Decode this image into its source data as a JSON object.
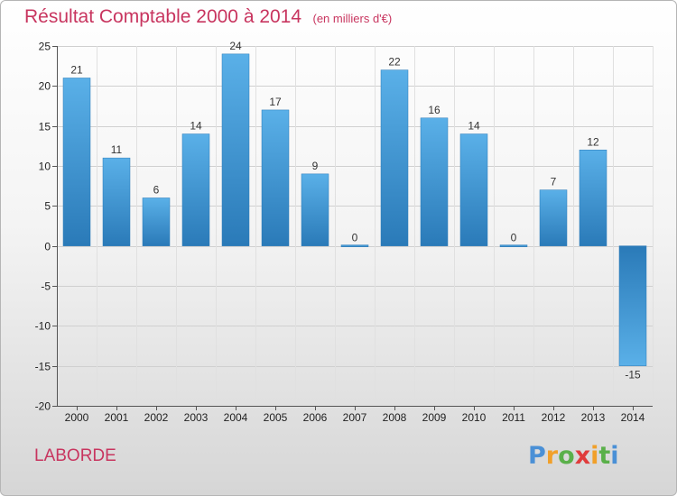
{
  "header": {
    "title": "Résultat Comptable 2000 à 2014",
    "unit": "(en milliers d'€)"
  },
  "footer": {
    "commune": "LABORDE",
    "brand": "Proxiti"
  },
  "colors": {
    "bar_light": "#5ab0e8",
    "bar_dark": "#2a7ab8",
    "accent": "#c8355f"
  },
  "chart_data": {
    "type": "bar",
    "title": "Résultat Comptable 2000 à 2014",
    "subtitle": "(en milliers d'€)",
    "xlabel": "",
    "ylabel": "",
    "categories": [
      "2000",
      "2001",
      "2002",
      "2003",
      "2004",
      "2005",
      "2006",
      "2007",
      "2008",
      "2009",
      "2010",
      "2011",
      "2012",
      "2013",
      "2014"
    ],
    "values": [
      21,
      11,
      6,
      14,
      24,
      17,
      9,
      0,
      22,
      16,
      14,
      0,
      7,
      12,
      -15
    ],
    "ylim": [
      -20,
      25
    ],
    "yticks": [
      -20,
      -15,
      -10,
      -5,
      0,
      5,
      10,
      15,
      20,
      25
    ],
    "grid": "horizontal",
    "legend": "none"
  }
}
